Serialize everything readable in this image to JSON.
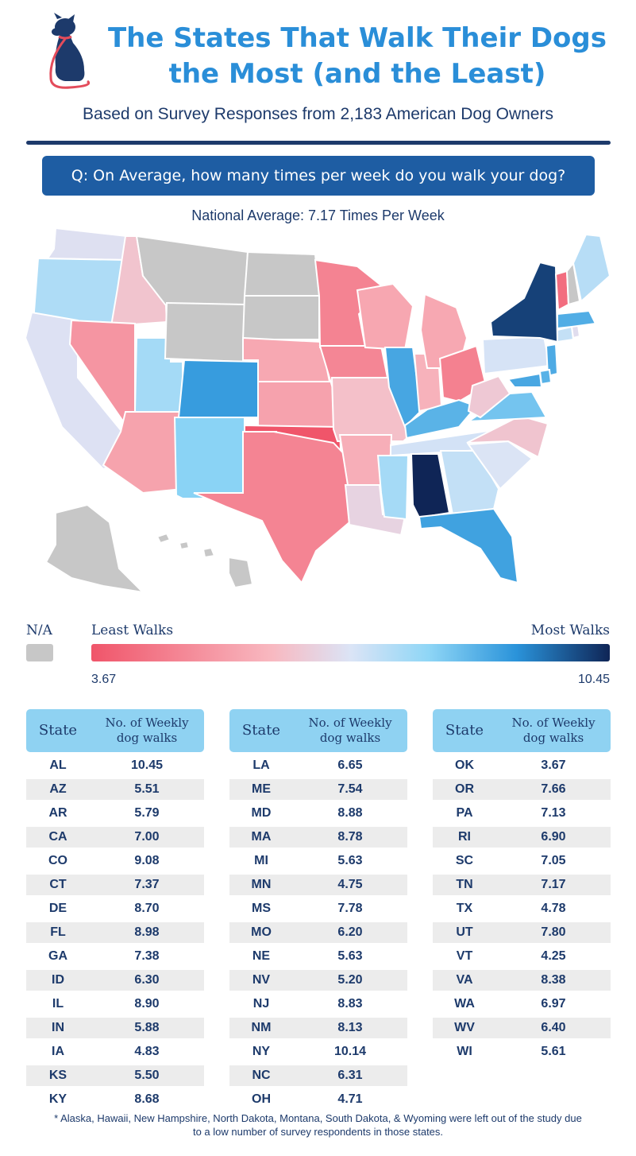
{
  "header": {
    "title_line1": "The States That Walk Their Dogs",
    "title_line2": "the Most (and the Least)",
    "subtitle": "Based on Survey Responses from 2,183 American Dog Owners",
    "question": "Q: On Average, how many times per week do you walk your dog?",
    "national_average": "National Average: 7.17 Times Per Week"
  },
  "legend": {
    "na_label": "N/A",
    "least_label": "Least Walks",
    "most_label": "Most Walks",
    "min_value": "3.67",
    "max_value": "10.45",
    "na_color": "#c7c7c7",
    "low_color": "#f0556a",
    "high_color": "#0f2556"
  },
  "table_header": {
    "state": "State",
    "walks": "No. of Weekly\ndog walks"
  },
  "footnote": {
    "line1": "* Alaska, Hawaii, New Hampshire, North Dakota, Montana, South Dakota, & Wyoming were left out of the study due",
    "line2": "to a low number of survey respondents in those states."
  },
  "chart_data": {
    "type": "table",
    "value_range": [
      3.67,
      10.45
    ],
    "not_available": [
      "AK",
      "HI",
      "NH",
      "ND",
      "MT",
      "SD",
      "WY"
    ],
    "rows": [
      {
        "state": "AL",
        "value": "10.45"
      },
      {
        "state": "AZ",
        "value": "5.51"
      },
      {
        "state": "AR",
        "value": "5.79"
      },
      {
        "state": "CA",
        "value": "7.00"
      },
      {
        "state": "CO",
        "value": "9.08"
      },
      {
        "state": "CT",
        "value": "7.37"
      },
      {
        "state": "DE",
        "value": "8.70"
      },
      {
        "state": "FL",
        "value": "8.98"
      },
      {
        "state": "GA",
        "value": "7.38"
      },
      {
        "state": "ID",
        "value": "6.30"
      },
      {
        "state": "IL",
        "value": "8.90"
      },
      {
        "state": "IN",
        "value": "5.88"
      },
      {
        "state": "IA",
        "value": "4.83"
      },
      {
        "state": "KS",
        "value": "5.50"
      },
      {
        "state": "KY",
        "value": "8.68"
      },
      {
        "state": "LA",
        "value": "6.65"
      },
      {
        "state": "ME",
        "value": "7.54"
      },
      {
        "state": "MD",
        "value": "8.88"
      },
      {
        "state": "MA",
        "value": "8.78"
      },
      {
        "state": "MI",
        "value": "5.63"
      },
      {
        "state": "MN",
        "value": "4.75"
      },
      {
        "state": "MS",
        "value": "7.78"
      },
      {
        "state": "MO",
        "value": "6.20"
      },
      {
        "state": "NE",
        "value": "5.63"
      },
      {
        "state": "NV",
        "value": "5.20"
      },
      {
        "state": "NJ",
        "value": "8.83"
      },
      {
        "state": "NM",
        "value": "8.13"
      },
      {
        "state": "NY",
        "value": "10.14"
      },
      {
        "state": "NC",
        "value": "6.31"
      },
      {
        "state": "OH",
        "value": "4.71"
      },
      {
        "state": "OK",
        "value": "3.67"
      },
      {
        "state": "OR",
        "value": "7.66"
      },
      {
        "state": "PA",
        "value": "7.13"
      },
      {
        "state": "RI",
        "value": "6.90"
      },
      {
        "state": "SC",
        "value": "7.05"
      },
      {
        "state": "TN",
        "value": "7.17"
      },
      {
        "state": "TX",
        "value": "4.78"
      },
      {
        "state": "UT",
        "value": "7.80"
      },
      {
        "state": "VT",
        "value": "4.25"
      },
      {
        "state": "VA",
        "value": "8.38"
      },
      {
        "state": "WA",
        "value": "6.97"
      },
      {
        "state": "WV",
        "value": "6.40"
      },
      {
        "state": "WI",
        "value": "5.61"
      }
    ]
  }
}
